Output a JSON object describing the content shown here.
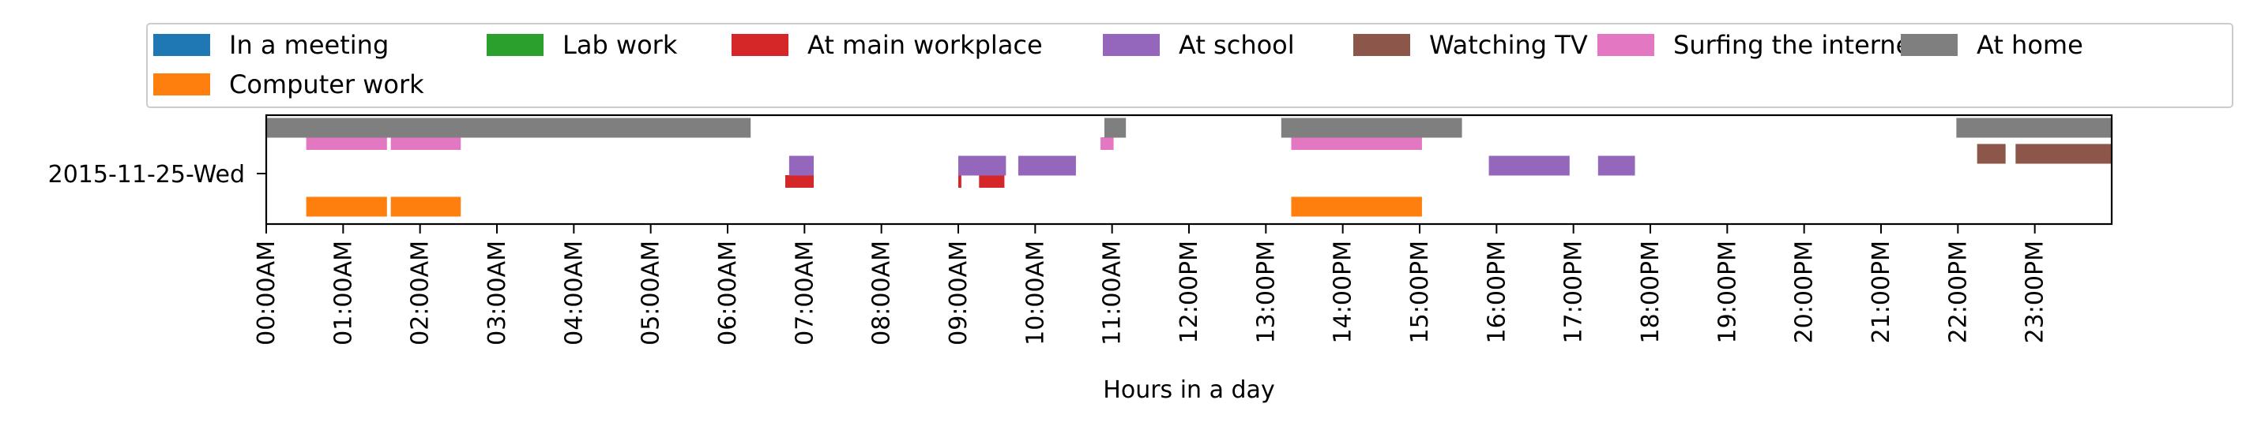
{
  "chart_data": {
    "type": "broken-barh",
    "title": "",
    "xlabel": "Hours in a day",
    "ylabel": "",
    "xlim": [
      0,
      24
    ],
    "grid": false,
    "legend": {
      "placement": "top"
    },
    "y_category": "2015-11-25-Wed",
    "x_tick_labels": [
      "00:00AM",
      "01:00AM",
      "02:00AM",
      "03:00AM",
      "04:00AM",
      "05:00AM",
      "06:00AM",
      "07:00AM",
      "08:00AM",
      "09:00AM",
      "10:00AM",
      "11:00AM",
      "12:00PM",
      "13:00PM",
      "14:00PM",
      "15:00PM",
      "16:00PM",
      "17:00PM",
      "18:00PM",
      "19:00PM",
      "20:00PM",
      "21:00PM",
      "22:00PM",
      "23:00PM"
    ],
    "series": [
      {
        "name": "In a meeting",
        "color": "#1f77b4",
        "lane": 0,
        "intervals": []
      },
      {
        "name": "Lab work",
        "color": "#2ca02c",
        "lane": 0,
        "intervals": []
      },
      {
        "name": "At main workplace",
        "color": "#d62728",
        "lane": 2,
        "intervals": [
          [
            6.75,
            7.12
          ],
          [
            9.0,
            9.04
          ],
          [
            9.27,
            9.6
          ]
        ]
      },
      {
        "name": "At school",
        "color": "#9467bd",
        "lane": 3,
        "intervals": [
          [
            6.8,
            7.12
          ],
          [
            9.0,
            9.62
          ],
          [
            9.78,
            10.53
          ],
          [
            15.9,
            16.95
          ],
          [
            17.32,
            17.8
          ]
        ]
      },
      {
        "name": "Watching TV",
        "color": "#8c564b",
        "lane": 4,
        "intervals": [
          [
            22.25,
            22.62
          ],
          [
            22.75,
            24.0
          ]
        ]
      },
      {
        "name": "Surfing the internet",
        "color": "#e377c2",
        "lane": 5,
        "intervals": [
          [
            0.52,
            1.57
          ],
          [
            1.62,
            2.53
          ],
          [
            10.85,
            11.02
          ],
          [
            13.33,
            15.03
          ]
        ]
      },
      {
        "name": "At home",
        "color": "#7f7f7f",
        "lane": 6,
        "intervals": [
          [
            0.0,
            6.3
          ],
          [
            10.9,
            11.18
          ],
          [
            13.2,
            15.55
          ],
          [
            21.98,
            24.0
          ]
        ]
      },
      {
        "name": "Computer work",
        "color": "#ff7f0e",
        "lane": 1,
        "intervals": [
          [
            0.52,
            1.57
          ],
          [
            1.62,
            2.53
          ],
          [
            13.33,
            15.03
          ]
        ]
      }
    ]
  }
}
